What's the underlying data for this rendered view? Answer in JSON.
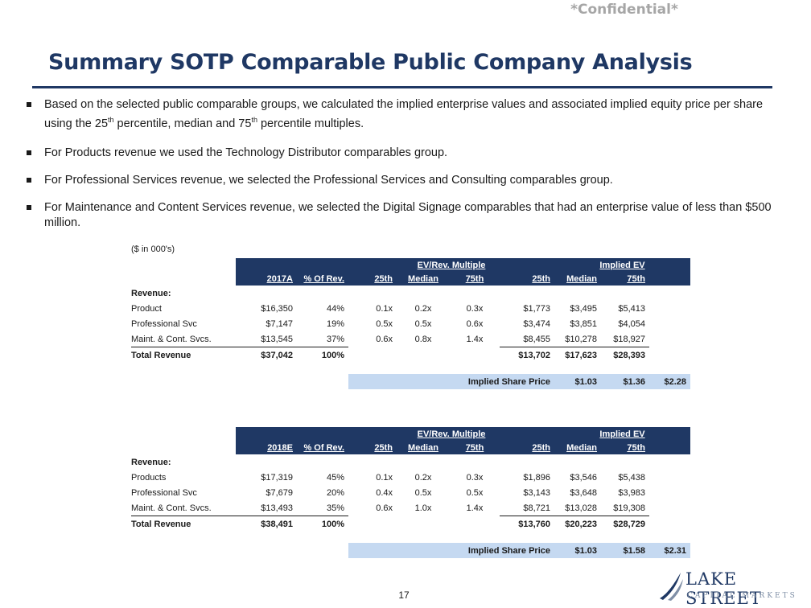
{
  "header": {
    "confidential": "*Confidential*",
    "title": "Summary SOTP Comparable Public Company Analysis"
  },
  "bullets": [
    {
      "before": "Based on the selected public comparable groups, we calculated the implied enterprise values and associated implied equity price per share using the 25",
      "sup": "th",
      "after": " percentile, median and 75",
      "sup2": "th",
      "after2": " percentile multiples."
    },
    {
      "text": "For Products revenue we used the Technology Distributor comparables group."
    },
    {
      "text": "For Professional Services revenue, we selected the Professional Services and Consulting comparables group."
    },
    {
      "text": "For Maintenance and Content Services revenue, we selected the Digital Signage comparables that had an enterprise value of less than $500 million."
    }
  ],
  "units": "($ in 000's)",
  "tables": [
    {
      "group_multiple": "EV/Rev. Multiple",
      "group_ev": "Implied EV",
      "headers": [
        "2017A",
        "% Of Rev.",
        "25th",
        "Median",
        "75th",
        "25th",
        "Median",
        "75th"
      ],
      "section_label": "Revenue:",
      "rows": [
        {
          "label": "Product",
          "rev": "$16,350",
          "pct": "44%",
          "m25": "0.1x",
          "mmed": "0.2x",
          "m75": "0.3x",
          "ev25": "$1,773",
          "evmed": "$3,495",
          "ev75": "$5,413"
        },
        {
          "label": "Professional Svc",
          "rev": "$7,147",
          "pct": "19%",
          "m25": "0.5x",
          "mmed": "0.5x",
          "m75": "0.6x",
          "ev25": "$3,474",
          "evmed": "$3,851",
          "ev75": "$4,054"
        },
        {
          "label": "Maint. & Cont. Svcs.",
          "rev": "$13,545",
          "pct": "37%",
          "m25": "0.6x",
          "mmed": "0.8x",
          "m75": "1.4x",
          "ev25": "$8,455",
          "evmed": "$10,278",
          "ev75": "$18,927"
        }
      ],
      "total": {
        "label": "Total Revenue",
        "rev": "$37,042",
        "pct": "100%",
        "ev25": "$13,702",
        "evmed": "$17,623",
        "ev75": "$28,393"
      },
      "share": {
        "label": "Implied Share Price",
        "p25": "$1.03",
        "pmed": "$1.36",
        "p75": "$2.28"
      }
    },
    {
      "group_multiple": "EV/Rev. Multiple",
      "group_ev": "Implied EV",
      "headers": [
        "2018E",
        "% Of Rev.",
        "25th",
        "Median",
        "75th",
        "25th",
        "Median",
        "75th"
      ],
      "section_label": "Revenue:",
      "rows": [
        {
          "label": "Products",
          "rev": "$17,319",
          "pct": "45%",
          "m25": "0.1x",
          "mmed": "0.2x",
          "m75": "0.3x",
          "ev25": "$1,896",
          "evmed": "$3,546",
          "ev75": "$5,438"
        },
        {
          "label": "Professional Svc",
          "rev": "$7,679",
          "pct": "20%",
          "m25": "0.4x",
          "mmed": "0.5x",
          "m75": "0.5x",
          "ev25": "$3,143",
          "evmed": "$3,648",
          "ev75": "$3,983"
        },
        {
          "label": "Maint. & Cont. Svcs.",
          "rev": "$13,493",
          "pct": "35%",
          "m25": "0.6x",
          "mmed": "1.0x",
          "m75": "1.4x",
          "ev25": "$8,721",
          "evmed": "$13,028",
          "ev75": "$19,308"
        }
      ],
      "total": {
        "label": "Total Revenue",
        "rev": "$38,491",
        "pct": "100%",
        "ev25": "$13,760",
        "evmed": "$20,223",
        "ev75": "$28,729"
      },
      "share": {
        "label": "Implied Share Price",
        "p25": "$1.03",
        "pmed": "$1.58",
        "p75": "$2.31"
      }
    }
  ],
  "footer": {
    "page_number": "17",
    "logo_line1": "LAKE STREET",
    "logo_line2": "CAPITAL MARKETS"
  },
  "colors": {
    "navy": "#1f3864",
    "light_blue": "#c5d9f1",
    "gray": "#a6a6a6"
  }
}
